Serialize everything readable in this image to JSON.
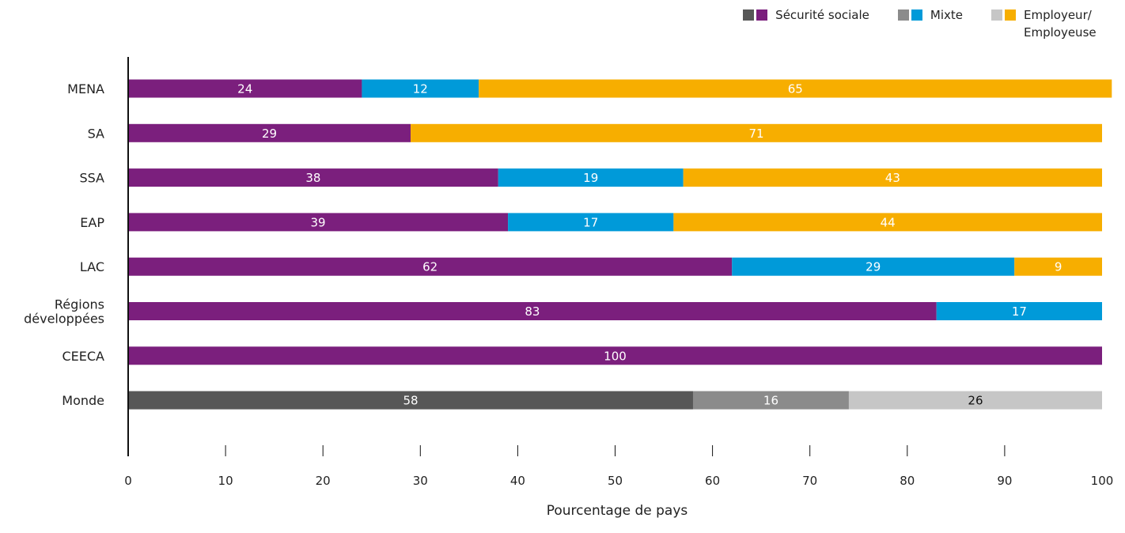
{
  "chart_data": {
    "type": "bar",
    "orientation": "horizontal",
    "stacked": true,
    "title": "",
    "xlabel": "Pourcentage de pays",
    "ylabel": "",
    "xlim": [
      0,
      100
    ],
    "x_ticks": [
      "0",
      "10",
      "20",
      "30",
      "40",
      "50",
      "60",
      "70",
      "80",
      "90",
      "100"
    ],
    "grid": false,
    "legend_position": "top-right",
    "categories": [
      "MENA",
      "SA",
      "SSA",
      "EAP",
      "LAC",
      "Régions développées",
      "CEECA",
      "Monde"
    ],
    "series": [
      {
        "name": "Sécurité sociale",
        "values": [
          24,
          29,
          38,
          39,
          62,
          83,
          100,
          58
        ],
        "labels": [
          "24",
          "29",
          "38",
          "39",
          "62",
          "83",
          "100",
          "58"
        ],
        "color": "#7b1f7d",
        "world_color": "#575757"
      },
      {
        "name": "Mixte",
        "values": [
          12,
          0,
          19,
          17,
          29,
          17,
          0,
          16
        ],
        "labels": [
          "12",
          "",
          "19",
          "17",
          "29",
          "17",
          "",
          "16"
        ],
        "color": "#009ad9",
        "world_color": "#8b8b8b"
      },
      {
        "name": "Employeur/ Employeuse",
        "values": [
          65,
          71,
          43,
          44,
          9,
          0,
          0,
          26
        ],
        "labels": [
          "65",
          "71",
          "43",
          "44",
          "9",
          "",
          "",
          "26"
        ],
        "color": "#f7ae00",
        "world_color": "#c6c6c6"
      }
    ],
    "highlighted_category": "Monde"
  },
  "legend": {
    "items": [
      {
        "label": "Sécurité sociale",
        "world_color": "#575757",
        "color": "#7b1f7d"
      },
      {
        "label": "Mixte",
        "world_color": "#8b8b8b",
        "color": "#009ad9"
      },
      {
        "label": "Employeur/ Employeuse",
        "world_color": "#c6c6c6",
        "color": "#f7ae00"
      }
    ]
  },
  "colors": {
    "axis": "#111111",
    "value_label_light": "#ffffff",
    "value_label_dark": "#111111"
  }
}
